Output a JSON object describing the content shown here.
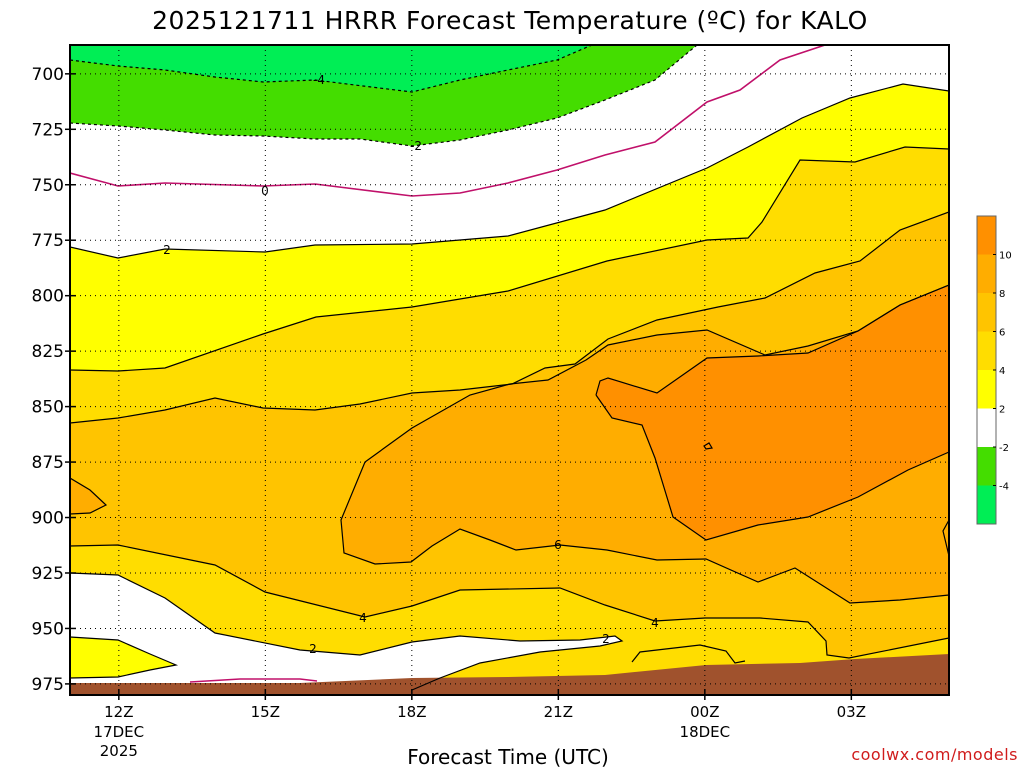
{
  "chart_data": {
    "type": "heatmap",
    "title": "2025121711 HRRR Forecast Temperature (ºC) for KALO",
    "xlabel": "Forecast Time (UTC)",
    "ylabel": "",
    "credit": "coolwx.com/models",
    "y_axis": {
      "ticks": [
        "700",
        "725",
        "750",
        "775",
        "800",
        "825",
        "850",
        "875",
        "900",
        "925",
        "950",
        "975"
      ],
      "range": [
        687,
        980
      ],
      "reversed": true
    },
    "x_axis": {
      "ticks": [
        {
          "label": "12Z",
          "date": "17DEC",
          "year": "2025"
        },
        {
          "label": "15Z",
          "date": "",
          "year": ""
        },
        {
          "label": "18Z",
          "date": "",
          "year": ""
        },
        {
          "label": "21Z",
          "date": "",
          "year": ""
        },
        {
          "label": "00Z",
          "date": "18DEC",
          "year": ""
        },
        {
          "label": "03Z",
          "date": "",
          "year": ""
        }
      ],
      "range": [
        "2025-12-17 11Z",
        "2025-12-18 05Z"
      ]
    },
    "grid": true,
    "colorbar": {
      "colors": [
        "#00ee55",
        "#44dd00",
        "#ffffff",
        "#ffff00",
        "#ffdd00",
        "#ffc400",
        "#ffad00",
        "#ff9000"
      ],
      "tick_labels": [
        "-4",
        "-2",
        "2",
        "4",
        "6",
        "8",
        "10"
      ]
    },
    "contour_labels": [
      "-4",
      "-2",
      "0",
      "2",
      "2",
      "2",
      "4",
      "4",
      "6",
      "0"
    ]
  }
}
